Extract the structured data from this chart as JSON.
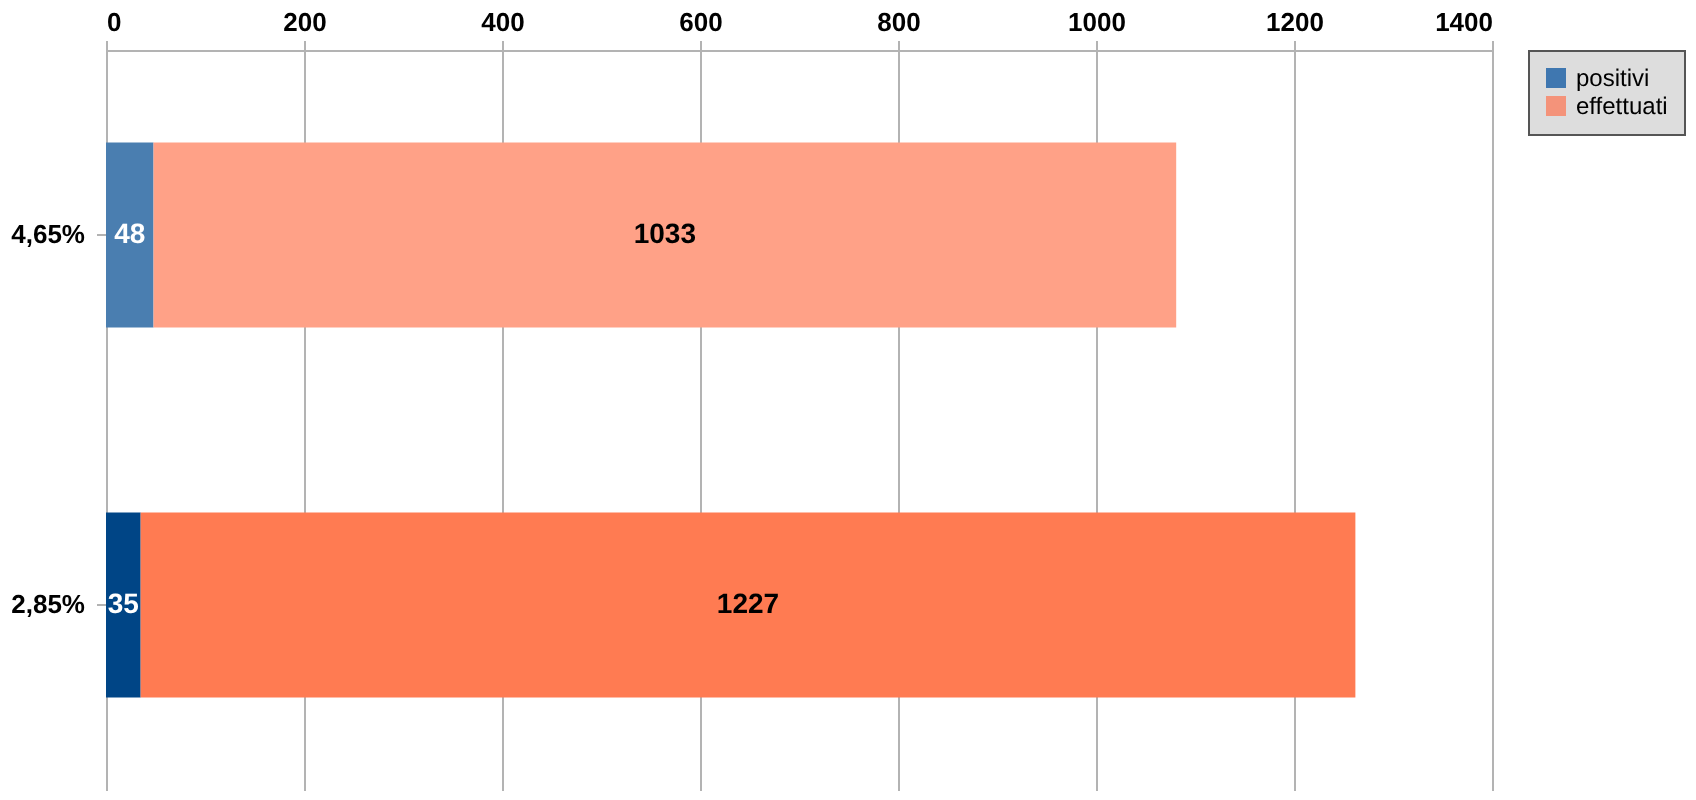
{
  "chart_data": {
    "type": "bar",
    "orientation": "horizontal",
    "stacked": true,
    "categories": [
      "4,65%",
      "2,85%"
    ],
    "series": [
      {
        "name": "positivi",
        "color": "#3f77b0",
        "colors": [
          "#4a7eb0",
          "#004586"
        ],
        "values": [
          48,
          35
        ]
      },
      {
        "name": "effettuati",
        "color": "#f4937a",
        "colors": [
          "#ffa187",
          "#ff7b52"
        ],
        "values": [
          1033,
          1227
        ]
      }
    ],
    "xlim": [
      0,
      1400
    ],
    "xticks": [
      0,
      200,
      400,
      600,
      800,
      1000,
      1200,
      1400
    ],
    "grid": "x",
    "legend": "right",
    "data_labels": true
  }
}
